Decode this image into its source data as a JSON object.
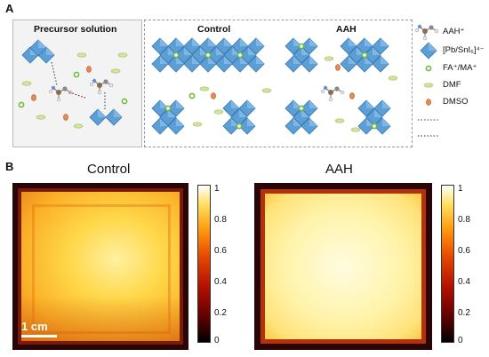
{
  "panel_a": {
    "letter": "A",
    "box_precursor_title": "Precursor solution",
    "box_control_title": "Control",
    "box_aah_title": "AAH",
    "legend": [
      {
        "icon": "aah-molecule-icon",
        "text": "AAH⁺"
      },
      {
        "icon": "octahedron-icon",
        "text": "[Pb/SnI₆]⁴⁻"
      },
      {
        "icon": "green-ring-icon",
        "text": "FA⁺/MA⁺"
      },
      {
        "icon": "green-ellipse-icon",
        "text": "DMF"
      },
      {
        "icon": "orange-ellipse-icon",
        "text": "DMSO"
      },
      {
        "icon": "dotted-line-blue-icon",
        "text": ""
      },
      {
        "icon": "dotted-line-dark-icon",
        "text": ""
      }
    ],
    "colors": {
      "octahedron": "#5b9fd6",
      "octahedron_dark": "#3a78b0",
      "dmf": "#c9dc8e",
      "dmso": "#e0824a",
      "fa_ma": "#7cc04a"
    }
  },
  "panel_b": {
    "letter": "B",
    "control_title": "Control",
    "aah_title": "AAH",
    "scale_bar_label": "1 cm",
    "colorbar_ticks": [
      "1",
      "0.8",
      "0.6",
      "0.4",
      "0.2",
      "0"
    ]
  }
}
